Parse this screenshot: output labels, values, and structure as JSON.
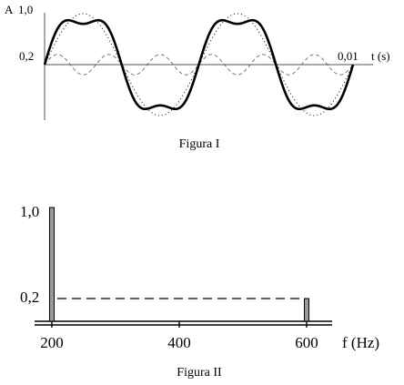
{
  "chart_data": [
    {
      "type": "line",
      "caption": "Figura I",
      "ylabel": "A",
      "xlabel": "t (s)",
      "ytick_labels": [
        "1,0",
        "0,2"
      ],
      "xtick_labels": [
        "0,01"
      ],
      "x_range": [
        0,
        0.01
      ],
      "y_range": [
        -1.0,
        1.0
      ],
      "fundamental": {
        "amplitude": 1.0,
        "cycles_in_range": 2,
        "style": "dotted"
      },
      "harmonic": {
        "amplitude": 0.2,
        "cycles_in_range": 6,
        "style": "dashed"
      },
      "sum": {
        "style": "solid-bold"
      }
    },
    {
      "type": "bar",
      "caption": "Figura II",
      "xlabel": "f (Hz)",
      "x": [
        200,
        600
      ],
      "values": [
        1.0,
        0.2
      ],
      "ytick_labels": [
        "1,0",
        "0,2"
      ],
      "xtick_labels": [
        "200",
        "400",
        "600"
      ],
      "xlim": [
        200,
        600
      ],
      "ylim": [
        0,
        1.0
      ]
    }
  ]
}
